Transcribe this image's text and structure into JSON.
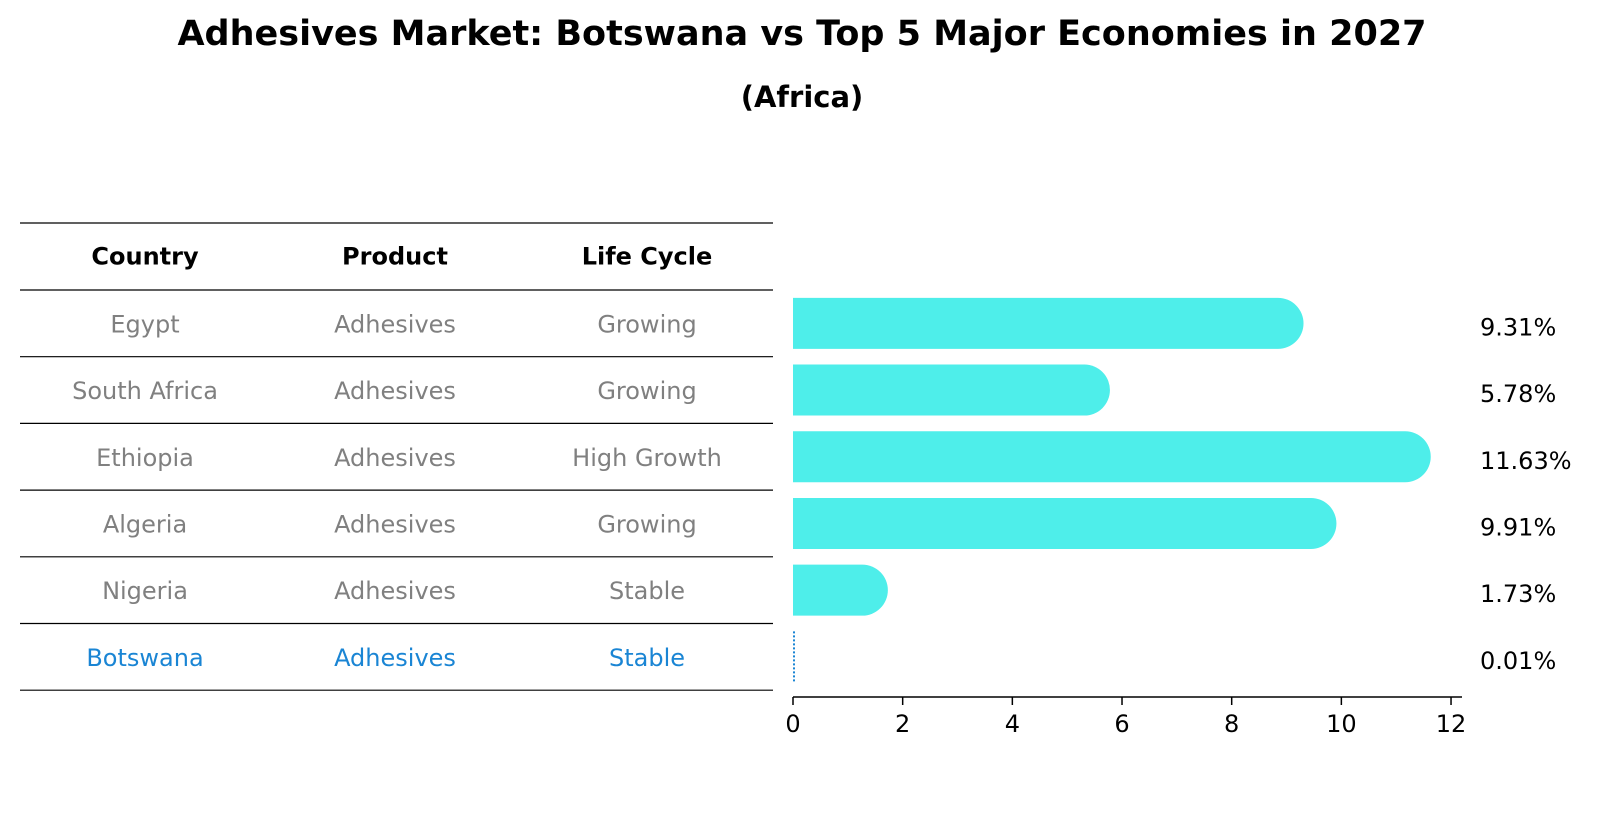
{
  "title": "Adhesives Market: Botswana vs Top 5 Major Economies in 2027",
  "subtitle": "(Africa)",
  "table": {
    "headers": [
      "Country",
      "Product",
      "Life Cycle"
    ],
    "rows": [
      {
        "country": "Egypt",
        "product": "Adhesives",
        "life_cycle": "Growing"
      },
      {
        "country": "South Africa",
        "product": "Adhesives",
        "life_cycle": "Growing"
      },
      {
        "country": "Ethiopia",
        "product": "Adhesives",
        "life_cycle": "High Growth"
      },
      {
        "country": "Algeria",
        "product": "Adhesives",
        "life_cycle": "Growing"
      },
      {
        "country": "Nigeria",
        "product": "Adhesives",
        "life_cycle": "Stable"
      },
      {
        "country": "Botswana",
        "product": "Adhesives",
        "life_cycle": "Stable"
      }
    ]
  },
  "colors": {
    "bar": "#4EEEEA",
    "highlight_text": "#1A85D4",
    "row_text": "#808080"
  },
  "chart_data": {
    "type": "bar",
    "orientation": "horizontal",
    "categories": [
      "Egypt",
      "South Africa",
      "Ethiopia",
      "Algeria",
      "Nigeria",
      "Botswana"
    ],
    "values": [
      9.31,
      5.78,
      11.63,
      9.91,
      1.73,
      0.01
    ],
    "value_labels": [
      "9.31%",
      "5.78%",
      "11.63%",
      "9.91%",
      "1.73%",
      "0.01%"
    ],
    "xlim": [
      0,
      12.2
    ],
    "xticks": [
      0,
      2,
      4,
      6,
      8,
      10,
      12
    ],
    "grid": false
  }
}
